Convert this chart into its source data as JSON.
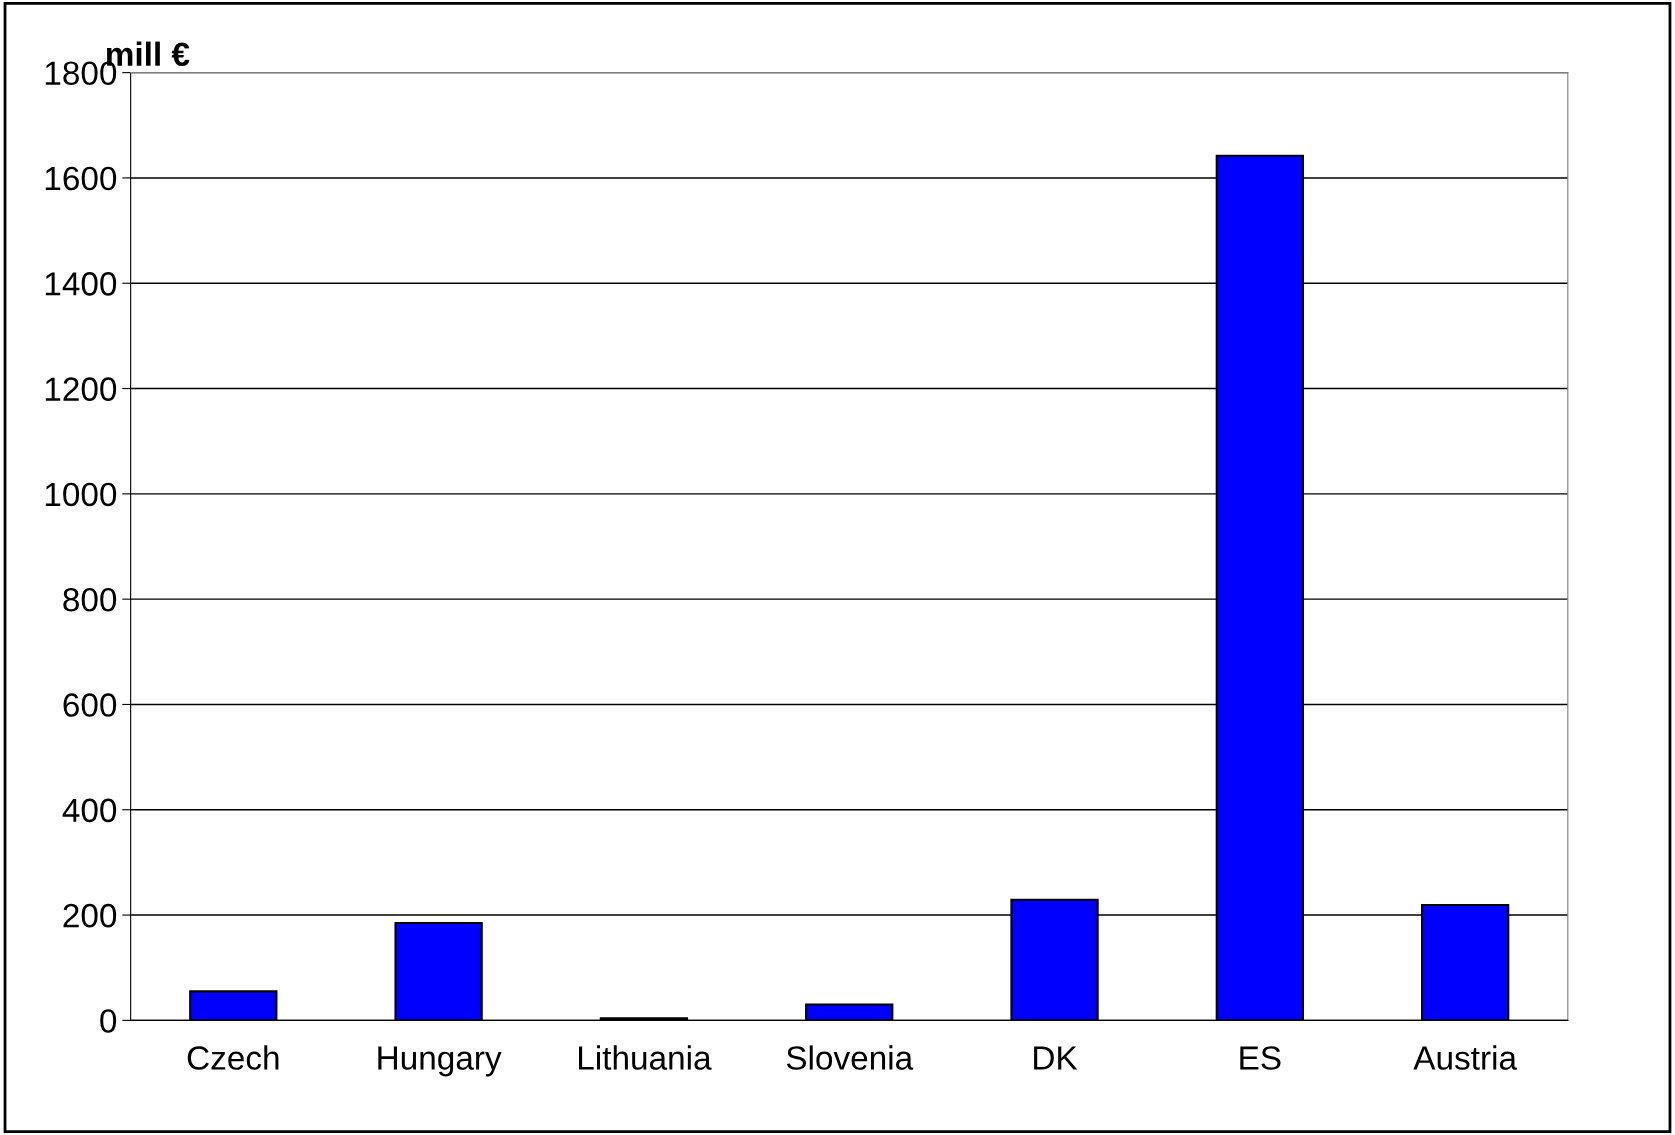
{
  "chart_data": {
    "type": "bar",
    "ylabel": "mill €",
    "categories": [
      "Czech",
      "Hungary",
      "Lithuania",
      "Slovenia",
      "DK",
      "ES",
      "Austria"
    ],
    "values": [
      55,
      185,
      4,
      30,
      229,
      1642,
      219
    ],
    "color": "#0000ff",
    "ylim": [
      0,
      1800
    ],
    "yticks": [
      0,
      200,
      400,
      600,
      800,
      1000,
      1200,
      1400,
      1600,
      1800
    ],
    "grid": "y",
    "legend": false
  }
}
